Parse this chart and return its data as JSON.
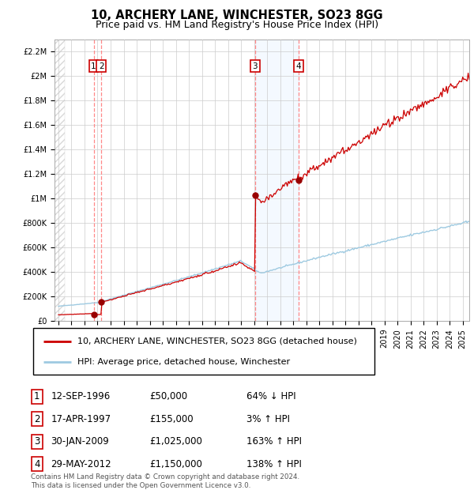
{
  "title": "10, ARCHERY LANE, WINCHESTER, SO23 8GG",
  "subtitle": "Price paid vs. HM Land Registry's House Price Index (HPI)",
  "ylim": [
    0,
    2300000
  ],
  "yticks": [
    0,
    200000,
    400000,
    600000,
    800000,
    1000000,
    1200000,
    1400000,
    1600000,
    1800000,
    2000000,
    2200000
  ],
  "ytick_labels": [
    "£0",
    "£200K",
    "£400K",
    "£600K",
    "£800K",
    "£1M",
    "£1.2M",
    "£1.4M",
    "£1.6M",
    "£1.8M",
    "£2M",
    "£2.2M"
  ],
  "xlim_start": 1993.7,
  "xlim_end": 2025.5,
  "sale_dates_num": [
    1996.7,
    1997.29,
    2009.08,
    2012.41
  ],
  "sale_prices": [
    50000,
    155000,
    1025000,
    1150000
  ],
  "sale_labels": [
    "1",
    "2",
    "3",
    "4"
  ],
  "hpi_line_color": "#9ecae1",
  "sale_line_color": "#cc0000",
  "sale_dot_color": "#990000",
  "shade_x1": 2009.08,
  "shade_x2": 2012.41,
  "shade_color": "#ddeeff",
  "dashed_line_color": "#ff8888",
  "background_color": "#ffffff",
  "grid_color": "#cccccc",
  "hatch_color": "#d8d8d8",
  "legend_line1": "10, ARCHERY LANE, WINCHESTER, SO23 8GG (detached house)",
  "legend_line2": "HPI: Average price, detached house, Winchester",
  "table_rows": [
    [
      "1",
      "12-SEP-1996",
      "£50,000",
      "64% ↓ HPI"
    ],
    [
      "2",
      "17-APR-1997",
      "£155,000",
      "3% ↑ HPI"
    ],
    [
      "3",
      "30-JAN-2009",
      "£1,025,000",
      "163% ↑ HPI"
    ],
    [
      "4",
      "29-MAY-2012",
      "£1,150,000",
      "138% ↑ HPI"
    ]
  ],
  "footnote": "Contains HM Land Registry data © Crown copyright and database right 2024.\nThis data is licensed under the Open Government Licence v3.0.",
  "title_fontsize": 10.5,
  "subtitle_fontsize": 9,
  "axis_fontsize": 7,
  "legend_fontsize": 8,
  "table_fontsize": 8.5
}
